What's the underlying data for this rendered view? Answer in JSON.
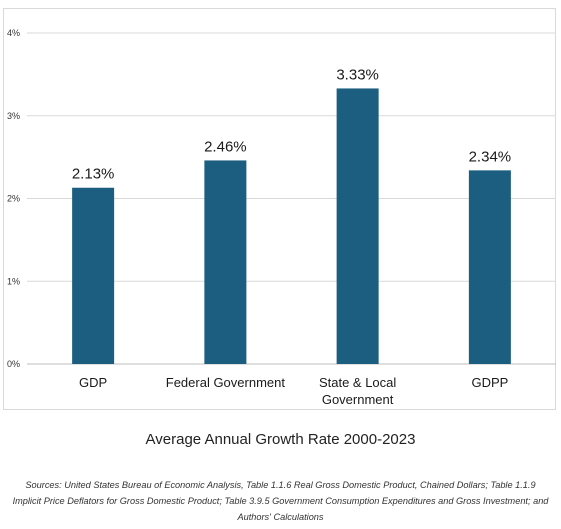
{
  "chart_data": {
    "type": "bar",
    "categories": [
      "GDP",
      "Federal Government",
      "State & Local Government",
      "GDPP"
    ],
    "category_lines": [
      [
        "GDP"
      ],
      [
        "Federal Government"
      ],
      [
        "State & Local",
        "Government"
      ],
      [
        "GDPP"
      ]
    ],
    "values": [
      2.13,
      2.46,
      3.33,
      2.34
    ],
    "data_labels": [
      "2.13%",
      "2.46%",
      "3.33%",
      "2.34%"
    ],
    "ylim": [
      0,
      4
    ],
    "yticks": [
      "0%",
      "1%",
      "2%",
      "3%",
      "4%"
    ],
    "grid": true,
    "bar_color": "#1b5e7f",
    "title": "Average Annual Growth Rate 2000-2023",
    "xlabel": "",
    "ylabel": ""
  },
  "sources": "Sources: United States Bureau of Economic Analysis, Table 1.1.6 Real Gross Domestic Product, Chained Dollars; Table 1.1.9 Implicit Price Deflators for Gross Domestic Product; Table 3.9.5 Government Consumption Expenditures and Gross Investment; and Authors' Calculations"
}
